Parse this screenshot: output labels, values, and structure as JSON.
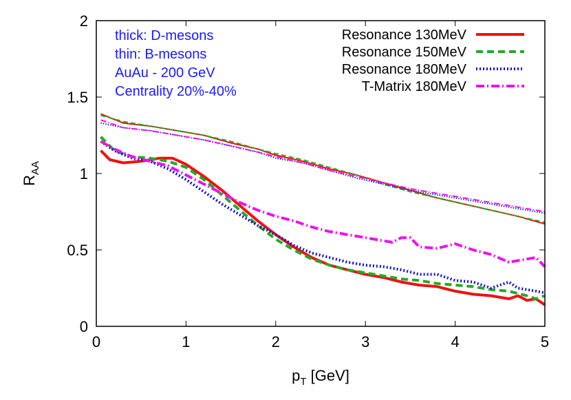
{
  "chart_data": {
    "type": "line",
    "xlabel_main": "p",
    "xlabel_sub": "T",
    "xlabel_unit": " [GeV]",
    "ylabel_main": "R",
    "ylabel_sub": "AA",
    "xlim": [
      0,
      5
    ],
    "ylim": [
      0,
      2
    ],
    "xticks": [
      "0",
      "1",
      "2",
      "3",
      "4",
      "5"
    ],
    "yticks": [
      "0",
      "0.5",
      "1",
      "1.5",
      "2"
    ],
    "grid": false,
    "legend_position": "top-right",
    "annotations": {
      "line1": "thick: D-mesons",
      "line2": "thin: B-mesons",
      "line3": "AuAu - 200 GeV",
      "line4": "Centrality 20%-40%",
      "color": "#1a1aff"
    },
    "series": [
      {
        "name": "Resonance 130MeV",
        "color": "#ee1111",
        "dash": "solid",
        "thick": [
          [
            0.05,
            1.15
          ],
          [
            0.15,
            1.09
          ],
          [
            0.3,
            1.07
          ],
          [
            0.5,
            1.08
          ],
          [
            0.7,
            1.1
          ],
          [
            0.85,
            1.1
          ],
          [
            1.0,
            1.06
          ],
          [
            1.2,
            0.98
          ],
          [
            1.4,
            0.89
          ],
          [
            1.6,
            0.79
          ],
          [
            1.8,
            0.69
          ],
          [
            2.0,
            0.6
          ],
          [
            2.2,
            0.52
          ],
          [
            2.4,
            0.45
          ],
          [
            2.6,
            0.4
          ],
          [
            2.8,
            0.37
          ],
          [
            3.0,
            0.34
          ],
          [
            3.2,
            0.32
          ],
          [
            3.4,
            0.29
          ],
          [
            3.6,
            0.27
          ],
          [
            3.8,
            0.26
          ],
          [
            4.0,
            0.23
          ],
          [
            4.2,
            0.21
          ],
          [
            4.4,
            0.2
          ],
          [
            4.6,
            0.18
          ],
          [
            4.7,
            0.2
          ],
          [
            4.8,
            0.17
          ],
          [
            4.9,
            0.18
          ],
          [
            5.0,
            0.14
          ]
        ],
        "thin": [
          [
            0.05,
            1.39
          ],
          [
            0.3,
            1.33
          ],
          [
            0.6,
            1.31
          ],
          [
            0.9,
            1.28
          ],
          [
            1.2,
            1.25
          ],
          [
            1.5,
            1.2
          ],
          [
            1.8,
            1.16
          ],
          [
            2.0,
            1.12
          ],
          [
            2.3,
            1.08
          ],
          [
            2.6,
            1.03
          ],
          [
            2.9,
            0.99
          ],
          [
            3.2,
            0.94
          ],
          [
            3.5,
            0.89
          ],
          [
            3.8,
            0.84
          ],
          [
            4.1,
            0.8
          ],
          [
            4.4,
            0.76
          ],
          [
            4.7,
            0.72
          ],
          [
            5.0,
            0.67
          ]
        ]
      },
      {
        "name": "Resonance 150MeV",
        "color": "#22aa22",
        "dash": "dashed",
        "thick": [
          [
            0.05,
            1.24
          ],
          [
            0.2,
            1.15
          ],
          [
            0.4,
            1.11
          ],
          [
            0.6,
            1.1
          ],
          [
            0.8,
            1.08
          ],
          [
            1.0,
            1.04
          ],
          [
            1.2,
            0.96
          ],
          [
            1.4,
            0.86
          ],
          [
            1.6,
            0.76
          ],
          [
            1.8,
            0.66
          ],
          [
            2.0,
            0.57
          ],
          [
            2.2,
            0.5
          ],
          [
            2.4,
            0.44
          ],
          [
            2.6,
            0.4
          ],
          [
            2.8,
            0.37
          ],
          [
            3.0,
            0.35
          ],
          [
            3.2,
            0.33
          ],
          [
            3.4,
            0.31
          ],
          [
            3.6,
            0.3
          ],
          [
            3.8,
            0.28
          ],
          [
            4.0,
            0.27
          ],
          [
            4.2,
            0.26
          ],
          [
            4.4,
            0.24
          ],
          [
            4.6,
            0.23
          ],
          [
            4.8,
            0.2
          ],
          [
            4.9,
            0.18
          ],
          [
            5.0,
            0.2
          ]
        ],
        "thin": [
          [
            0.05,
            1.38
          ],
          [
            0.3,
            1.34
          ],
          [
            0.6,
            1.31
          ],
          [
            0.9,
            1.28
          ],
          [
            1.2,
            1.25
          ],
          [
            1.5,
            1.21
          ],
          [
            1.8,
            1.16
          ],
          [
            2.0,
            1.13
          ],
          [
            2.3,
            1.09
          ],
          [
            2.6,
            1.04
          ],
          [
            2.9,
            0.99
          ],
          [
            3.2,
            0.93
          ],
          [
            3.5,
            0.88
          ],
          [
            3.8,
            0.84
          ],
          [
            4.1,
            0.8
          ],
          [
            4.4,
            0.76
          ],
          [
            4.7,
            0.72
          ],
          [
            5.0,
            0.68
          ]
        ]
      },
      {
        "name": "Resonance 180MeV",
        "color": "#1111cc",
        "dash": "dotted",
        "thick": [
          [
            0.05,
            1.21
          ],
          [
            0.2,
            1.15
          ],
          [
            0.4,
            1.1
          ],
          [
            0.6,
            1.08
          ],
          [
            0.8,
            1.03
          ],
          [
            1.0,
            0.96
          ],
          [
            1.2,
            0.88
          ],
          [
            1.4,
            0.8
          ],
          [
            1.6,
            0.73
          ],
          [
            1.8,
            0.66
          ],
          [
            2.0,
            0.6
          ],
          [
            2.2,
            0.53
          ],
          [
            2.4,
            0.48
          ],
          [
            2.6,
            0.45
          ],
          [
            2.8,
            0.42
          ],
          [
            3.0,
            0.4
          ],
          [
            3.2,
            0.39
          ],
          [
            3.4,
            0.37
          ],
          [
            3.6,
            0.34
          ],
          [
            3.8,
            0.34
          ],
          [
            4.0,
            0.3
          ],
          [
            4.2,
            0.29
          ],
          [
            4.4,
            0.25
          ],
          [
            4.6,
            0.29
          ],
          [
            4.7,
            0.25
          ],
          [
            4.9,
            0.23
          ],
          [
            5.0,
            0.22
          ]
        ],
        "thin": [
          [
            0.05,
            1.33
          ],
          [
            0.3,
            1.3
          ],
          [
            0.6,
            1.28
          ],
          [
            0.9,
            1.25
          ],
          [
            1.2,
            1.22
          ],
          [
            1.5,
            1.18
          ],
          [
            1.8,
            1.14
          ],
          [
            2.0,
            1.1
          ],
          [
            2.3,
            1.07
          ],
          [
            2.6,
            1.02
          ],
          [
            2.9,
            0.97
          ],
          [
            3.2,
            0.93
          ],
          [
            3.5,
            0.89
          ],
          [
            3.8,
            0.86
          ],
          [
            4.1,
            0.83
          ],
          [
            4.4,
            0.8
          ],
          [
            4.7,
            0.77
          ],
          [
            5.0,
            0.74
          ]
        ]
      },
      {
        "name": "T-Matrix 180MeV",
        "color": "#ee11ee",
        "dash": "dashdot",
        "thick": [
          [
            0.05,
            1.21
          ],
          [
            0.2,
            1.16
          ],
          [
            0.4,
            1.11
          ],
          [
            0.6,
            1.08
          ],
          [
            0.8,
            1.05
          ],
          [
            1.0,
            0.99
          ],
          [
            1.2,
            0.93
          ],
          [
            1.4,
            0.87
          ],
          [
            1.6,
            0.81
          ],
          [
            1.8,
            0.76
          ],
          [
            2.0,
            0.72
          ],
          [
            2.2,
            0.69
          ],
          [
            2.4,
            0.65
          ],
          [
            2.6,
            0.62
          ],
          [
            2.8,
            0.6
          ],
          [
            3.0,
            0.58
          ],
          [
            3.2,
            0.56
          ],
          [
            3.3,
            0.55
          ],
          [
            3.4,
            0.58
          ],
          [
            3.5,
            0.58
          ],
          [
            3.6,
            0.52
          ],
          [
            3.8,
            0.51
          ],
          [
            4.0,
            0.54
          ],
          [
            4.2,
            0.5
          ],
          [
            4.4,
            0.47
          ],
          [
            4.6,
            0.42
          ],
          [
            4.8,
            0.44
          ],
          [
            4.9,
            0.45
          ],
          [
            5.0,
            0.39
          ]
        ],
        "thin": [
          [
            0.05,
            1.35
          ],
          [
            0.3,
            1.3
          ],
          [
            0.6,
            1.28
          ],
          [
            0.9,
            1.25
          ],
          [
            1.2,
            1.22
          ],
          [
            1.5,
            1.18
          ],
          [
            1.8,
            1.14
          ],
          [
            2.0,
            1.11
          ],
          [
            2.3,
            1.07
          ],
          [
            2.6,
            1.02
          ],
          [
            2.9,
            0.98
          ],
          [
            3.2,
            0.94
          ],
          [
            3.5,
            0.9
          ],
          [
            3.8,
            0.87
          ],
          [
            4.1,
            0.84
          ],
          [
            4.4,
            0.81
          ],
          [
            4.7,
            0.78
          ],
          [
            5.0,
            0.75
          ]
        ]
      }
    ]
  }
}
